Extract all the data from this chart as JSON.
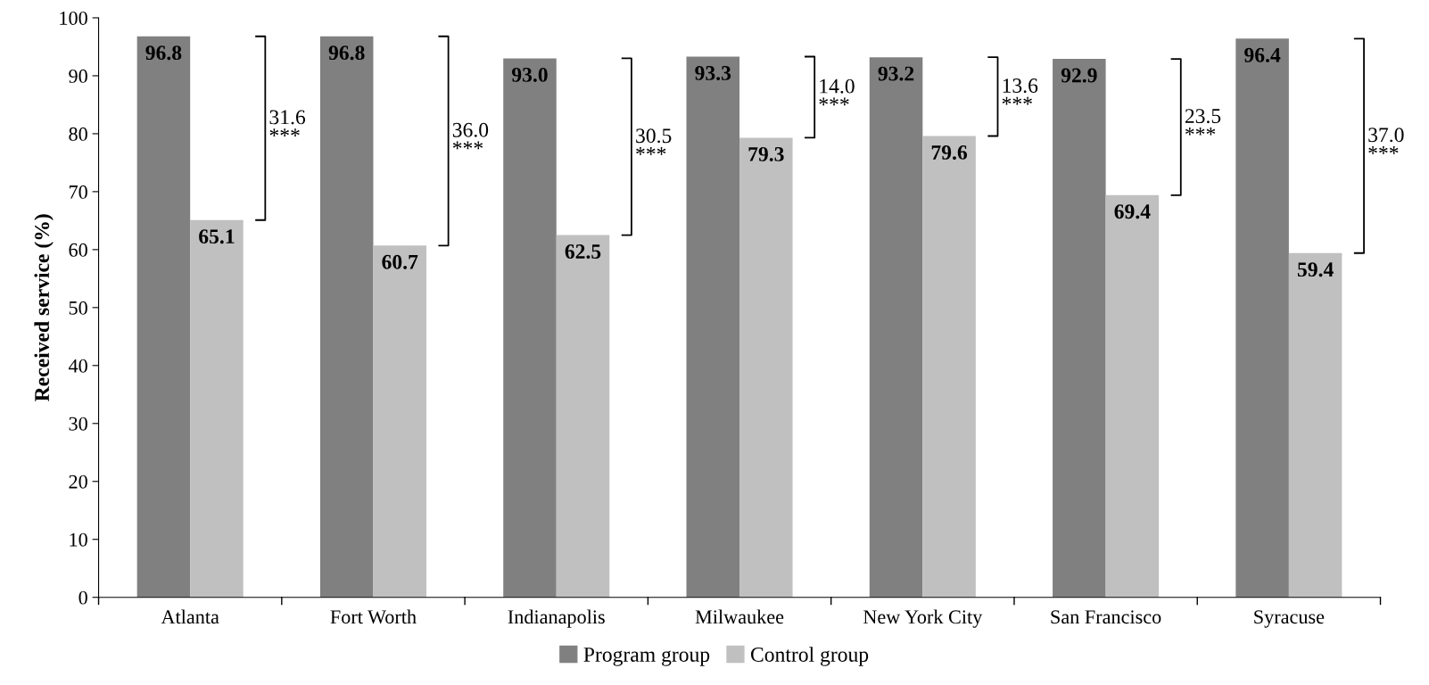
{
  "chart_data": {
    "type": "bar",
    "ylabel": "Received service (%)",
    "categories": [
      "Atlanta",
      "Fort Worth",
      "Indianapolis",
      "Milwaukee",
      "New York City",
      "San Francisco",
      "Syracuse"
    ],
    "series": [
      {
        "name": "Program group",
        "color": "#808080",
        "values": [
          96.8,
          96.8,
          93.0,
          93.3,
          93.2,
          92.9,
          96.4
        ],
        "value_labels": [
          "96.8",
          "96.8",
          "93.0",
          "93.3",
          "93.2",
          "92.9",
          "96.4"
        ]
      },
      {
        "name": "Control group",
        "color": "#c0c0c0",
        "values": [
          65.1,
          60.7,
          62.5,
          79.3,
          79.6,
          69.4,
          59.4
        ],
        "value_labels": [
          "65.1",
          "60.7",
          "62.5",
          "79.3",
          "79.6",
          "69.4",
          "59.4"
        ]
      }
    ],
    "ylim": [
      0,
      100
    ],
    "yticks": [
      0,
      10,
      20,
      30,
      40,
      50,
      60,
      70,
      80,
      90,
      100
    ],
    "grid": false,
    "legend": "bottom",
    "annotations": [
      "31.6\n***",
      "36.0\n***",
      "30.5\n***",
      "14.0\n***",
      "13.6\n***",
      "23.5\n***",
      "37.0\n***"
    ]
  }
}
